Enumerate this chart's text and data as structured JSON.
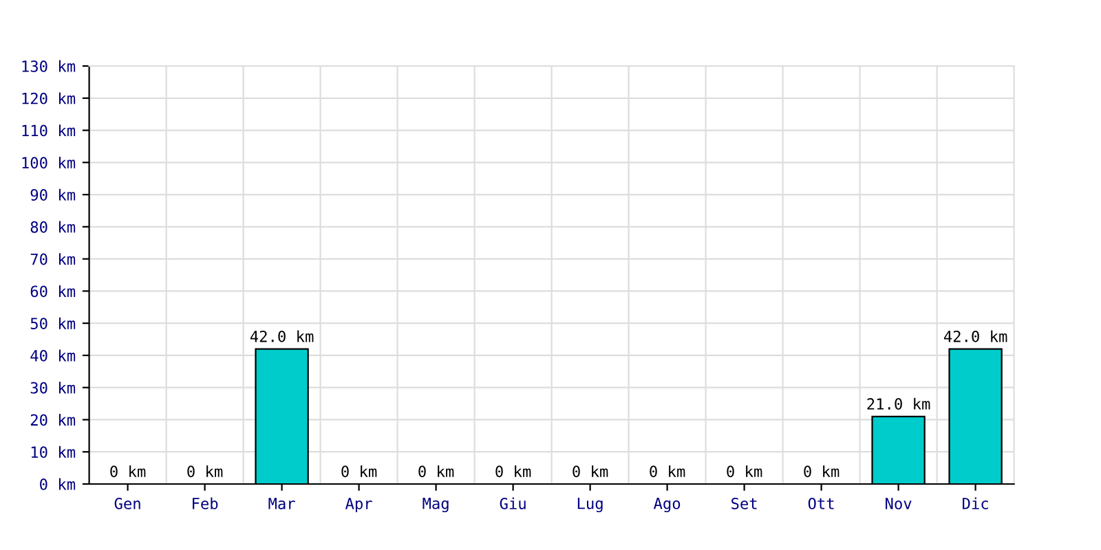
{
  "chart_data": {
    "type": "bar",
    "categories": [
      "Gen",
      "Feb",
      "Mar",
      "Apr",
      "Mag",
      "Giu",
      "Lug",
      "Ago",
      "Set",
      "Ott",
      "Nov",
      "Dic"
    ],
    "values": [
      0,
      0,
      42,
      0,
      0,
      0,
      0,
      0,
      0,
      0,
      21,
      42
    ],
    "value_labels": [
      "0 km",
      "0 km",
      "42.0 km",
      "0 km",
      "0 km",
      "0 km",
      "0 km",
      "0 km",
      "0 km",
      "0 km",
      "21.0 km",
      "42.0 km"
    ],
    "color": "#00cccc",
    "ylim": [
      0,
      130
    ],
    "yticks": [
      {
        "value": 0,
        "label": "0 km"
      },
      {
        "value": 10,
        "label": "10 km"
      },
      {
        "value": 20,
        "label": "20 km"
      },
      {
        "value": 30,
        "label": "30 km"
      },
      {
        "value": 40,
        "label": "40 km"
      },
      {
        "value": 50,
        "label": "50 km"
      },
      {
        "value": 60,
        "label": "60 km"
      },
      {
        "value": 70,
        "label": "70 km"
      },
      {
        "value": 80,
        "label": "80 km"
      },
      {
        "value": 90,
        "label": "90 km"
      },
      {
        "value": 100,
        "label": "100 km"
      },
      {
        "value": 110,
        "label": "110 km"
      },
      {
        "value": 120,
        "label": "120 km"
      },
      {
        "value": 130,
        "label": "130 km"
      }
    ],
    "grid": true,
    "legend": false
  }
}
